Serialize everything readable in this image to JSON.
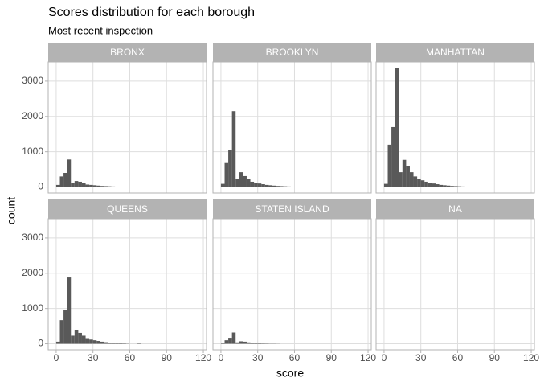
{
  "title": "Scores distribution for each borough",
  "subtitle": "Most recent inspection",
  "x_label": "score",
  "y_label": "count",
  "chart_data": [
    {
      "type": "histogram",
      "title": "BRONX",
      "color": "#595959",
      "bins": [
        0,
        3,
        6,
        9,
        12,
        15,
        18,
        21,
        24,
        27,
        30,
        33,
        36,
        39,
        42,
        45,
        48,
        51,
        54,
        57,
        60,
        63,
        66,
        69,
        72
      ],
      "values": [
        60,
        300,
        400,
        780,
        110,
        170,
        150,
        110,
        70,
        60,
        50,
        40,
        30,
        25,
        20,
        15,
        10,
        0,
        0,
        0,
        0,
        0,
        0,
        0
      ],
      "xlim": [
        -6.5,
        122.6
      ],
      "xticks": [
        0,
        30,
        60,
        90,
        120
      ],
      "ylim": [
        -170,
        3545
      ],
      "yticks": [
        0,
        1000,
        2000,
        3000
      ],
      "grid": true
    },
    {
      "type": "histogram",
      "title": "BROOKLYN",
      "color": "#595959",
      "bins": [
        0,
        3,
        6,
        9,
        12,
        15,
        18,
        21,
        24,
        27,
        30,
        33,
        36,
        39,
        42,
        45,
        48,
        51,
        54,
        57,
        60,
        63,
        66,
        69,
        72
      ],
      "values": [
        90,
        680,
        1050,
        2150,
        230,
        420,
        310,
        230,
        150,
        120,
        100,
        80,
        60,
        50,
        40,
        30,
        25,
        20,
        15,
        10,
        0,
        0,
        0,
        0
      ],
      "xlim": [
        -6.5,
        122.6
      ],
      "xticks": [
        0,
        30,
        60,
        90,
        120
      ],
      "ylim": [
        -170,
        3545
      ],
      "yticks": [
        0,
        1000,
        2000,
        3000
      ],
      "grid": true
    },
    {
      "type": "histogram",
      "title": "MANHATTAN",
      "color": "#595959",
      "bins": [
        0,
        3,
        6,
        9,
        12,
        15,
        18,
        21,
        24,
        27,
        30,
        33,
        36,
        39,
        42,
        45,
        48,
        51,
        54,
        57,
        60,
        63,
        66,
        69,
        72
      ],
      "values": [
        90,
        1200,
        1700,
        3370,
        420,
        770,
        590,
        420,
        300,
        230,
        190,
        150,
        120,
        100,
        80,
        60,
        50,
        40,
        30,
        25,
        20,
        15,
        10,
        0
      ],
      "xlim": [
        -6.5,
        122.6
      ],
      "xticks": [
        0,
        30,
        60,
        90,
        120
      ],
      "ylim": [
        -170,
        3545
      ],
      "yticks": [
        0,
        1000,
        2000,
        3000
      ],
      "grid": true
    },
    {
      "type": "histogram",
      "title": "QUEENS",
      "color": "#595959",
      "bins": [
        0,
        3,
        6,
        9,
        12,
        15,
        18,
        21,
        24,
        27,
        30,
        33,
        36,
        39,
        42,
        45,
        48,
        51,
        54,
        57,
        60,
        63,
        66,
        69,
        72
      ],
      "values": [
        60,
        670,
        960,
        1880,
        230,
        400,
        310,
        230,
        160,
        120,
        100,
        80,
        60,
        45,
        35,
        25,
        20,
        15,
        10,
        5,
        0,
        0,
        10,
        0
      ],
      "xlim": [
        -6.5,
        122.6
      ],
      "xticks": [
        0,
        30,
        60,
        90,
        120
      ],
      "ylim": [
        -170,
        3545
      ],
      "yticks": [
        0,
        1000,
        2000,
        3000
      ],
      "grid": true
    },
    {
      "type": "histogram",
      "title": "STATEN ISLAND",
      "color": "#595959",
      "bins": [
        0,
        3,
        6,
        9,
        12,
        15,
        18,
        21,
        24,
        27,
        30,
        33,
        36,
        39,
        42,
        45,
        48,
        51,
        54,
        57,
        60,
        63,
        66,
        69,
        72
      ],
      "values": [
        20,
        100,
        170,
        320,
        40,
        70,
        60,
        40,
        30,
        20,
        15,
        10,
        8,
        5,
        5,
        3,
        0,
        0,
        0,
        0,
        0,
        0,
        0,
        0
      ],
      "xlim": [
        -6.5,
        122.6
      ],
      "xticks": [
        0,
        30,
        60,
        90,
        120
      ],
      "ylim": [
        -170,
        3545
      ],
      "yticks": [
        0,
        1000,
        2000,
        3000
      ],
      "grid": true
    },
    {
      "type": "histogram",
      "title": "NA",
      "color": "#595959",
      "xlim": [
        -6.5,
        122.6
      ],
      "xticks": [
        0,
        30,
        60,
        90,
        120
      ],
      "ylim": [
        -170,
        3545
      ],
      "yticks": [
        0,
        1000,
        2000,
        3000
      ],
      "grid": true
    }
  ]
}
